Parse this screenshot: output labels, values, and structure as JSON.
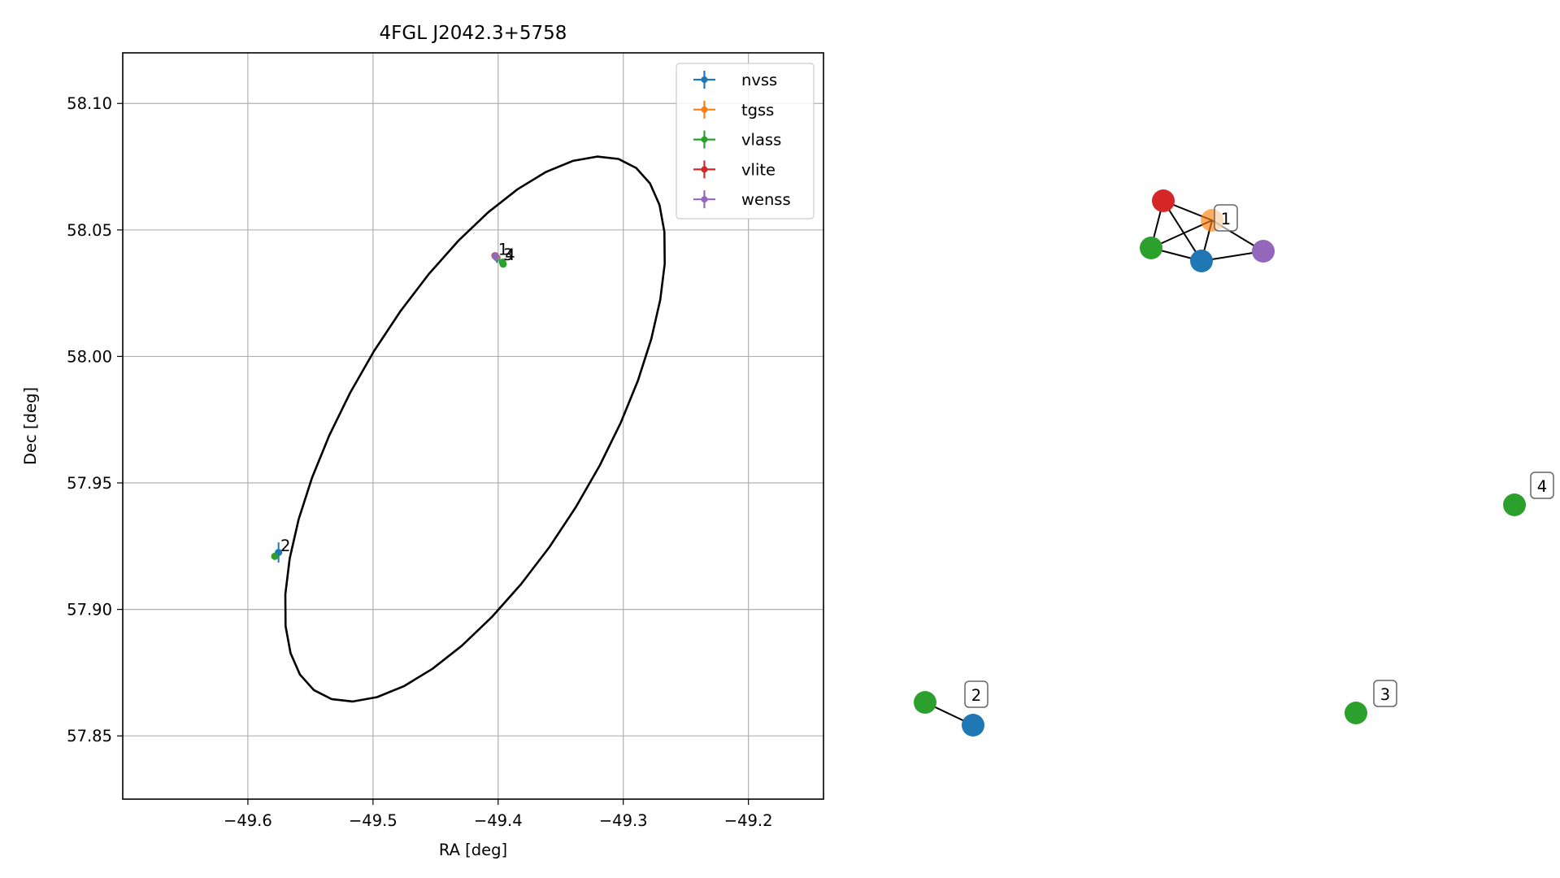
{
  "chart_data": [
    {
      "type": "scatter",
      "title": "4FGL J2042.3+5758",
      "xlabel": "RA [deg]",
      "ylabel": "Dec [deg]",
      "xlim": [
        -49.7,
        -49.14
      ],
      "ylim": [
        57.825,
        58.12
      ],
      "grid": true,
      "legend_position": "top-right",
      "xticks": [
        -49.6,
        -49.5,
        -49.4,
        -49.3,
        -49.2
      ],
      "xtick_labels": [
        "−49.6",
        "−49.5",
        "−49.4",
        "−49.3",
        "−49.2"
      ],
      "yticks": [
        57.85,
        57.9,
        57.95,
        58.0,
        58.05,
        58.1
      ],
      "ytick_labels": [
        "57.85",
        "57.90",
        "57.95",
        "58.00",
        "58.05",
        "58.10"
      ],
      "ellipse": {
        "center": [
          -49.4185,
          57.9713
        ],
        "semi_axis_1": 0.172,
        "semi_axis_2": 0.0715,
        "angle_deg": 31,
        "color": "#000000"
      },
      "series": [
        {
          "name": "nvss",
          "color": "#1f77b4",
          "points": [
            {
              "x": -49.401,
              "y": 58.039,
              "xerr": 0.001,
              "yerr": 0.002
            },
            {
              "x": -49.5755,
              "y": 57.9225,
              "xerr": 0.0015,
              "yerr": 0.004
            }
          ]
        },
        {
          "name": "tgss",
          "color": "#ff7f0e",
          "points": [
            {
              "x": -49.4015,
              "y": 58.0393,
              "xerr": 0.0012,
              "yerr": 0.0012
            }
          ]
        },
        {
          "name": "vlass",
          "color": "#2ca02c",
          "points": [
            {
              "x": -49.402,
              "y": 58.0395,
              "xerr": 0.0006,
              "yerr": 0.0006
            },
            {
              "x": -49.5785,
              "y": 57.921,
              "xerr": 0.0006,
              "yerr": 0.0006
            },
            {
              "x": -49.396,
              "y": 58.0365,
              "xerr": 0.0006,
              "yerr": 0.0006
            },
            {
              "x": -49.3965,
              "y": 58.0372,
              "xerr": 0.0006,
              "yerr": 0.0006
            }
          ]
        },
        {
          "name": "vlite",
          "color": "#d62728",
          "points": [
            {
              "x": -49.4025,
              "y": 58.0398,
              "xerr": 0.0012,
              "yerr": 0.0012
            }
          ]
        },
        {
          "name": "wenss",
          "color": "#9467bd",
          "points": [
            {
              "x": -49.4022,
              "y": 58.0396,
              "xerr": 0.0015,
              "yerr": 0.0015
            }
          ]
        }
      ],
      "annotations": [
        {
          "text": "1",
          "x": -49.4,
          "y": 58.042
        },
        {
          "text": "2",
          "x": -49.574,
          "y": 57.925
        },
        {
          "text": "3",
          "x": -49.396,
          "y": 58.04
        },
        {
          "text": "4",
          "x": -49.3945,
          "y": 58.04
        }
      ]
    },
    {
      "type": "network",
      "nodes": [
        {
          "id": "a",
          "color": "#d62728"
        },
        {
          "id": "b",
          "color": "#ff7f0e",
          "label": "1"
        },
        {
          "id": "c",
          "color": "#2ca02c"
        },
        {
          "id": "d",
          "color": "#1f77b4"
        },
        {
          "id": "e",
          "color": "#9467bd"
        },
        {
          "id": "f",
          "color": "#2ca02c"
        },
        {
          "id": "g",
          "color": "#1f77b4",
          "label": "2"
        },
        {
          "id": "h",
          "color": "#2ca02c",
          "label": "3"
        },
        {
          "id": "i",
          "color": "#2ca02c",
          "label": "4"
        }
      ],
      "edges": [
        [
          "a",
          "b"
        ],
        [
          "a",
          "c"
        ],
        [
          "a",
          "d"
        ],
        [
          "b",
          "c"
        ],
        [
          "b",
          "d"
        ],
        [
          "b",
          "e"
        ],
        [
          "c",
          "d"
        ],
        [
          "d",
          "e"
        ],
        [
          "f",
          "g"
        ]
      ]
    }
  ]
}
